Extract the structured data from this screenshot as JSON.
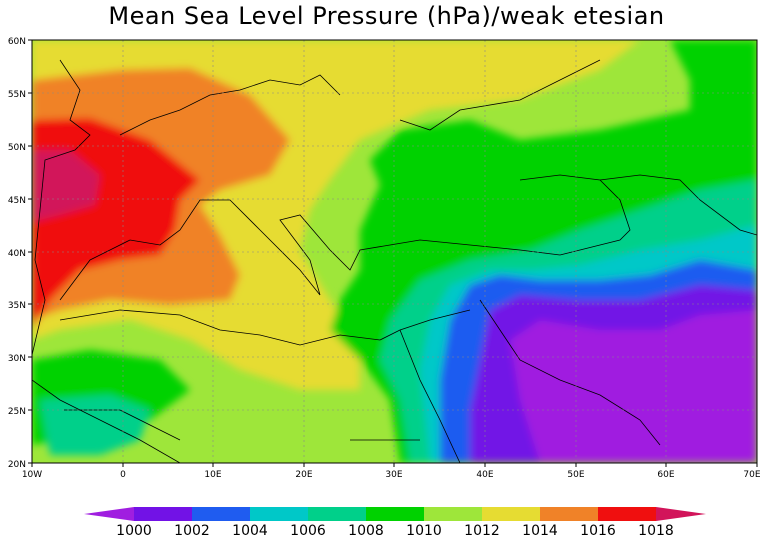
{
  "title": "Mean Sea Level Pressure (hPa)/weak etesian",
  "map": {
    "lat_labels": [
      "60N",
      "55N",
      "50N",
      "45N",
      "40N",
      "35N",
      "30N",
      "25N",
      "20N"
    ],
    "lon_labels": [
      "10W",
      "0",
      "10E",
      "20E",
      "30E",
      "40E",
      "50E",
      "60E",
      "70E"
    ]
  },
  "colorbar": {
    "levels": [
      "1000",
      "1002",
      "1004",
      "1006",
      "1008",
      "1010",
      "1012",
      "1014",
      "1016",
      "1018"
    ],
    "colors": [
      "#a01ee0",
      "#7212e6",
      "#1f5cf0",
      "#00c8c8",
      "#00d08a",
      "#00d200",
      "#9ee63a",
      "#e6dc32",
      "#f08228",
      "#f00f0f",
      "#d2145a"
    ]
  }
}
